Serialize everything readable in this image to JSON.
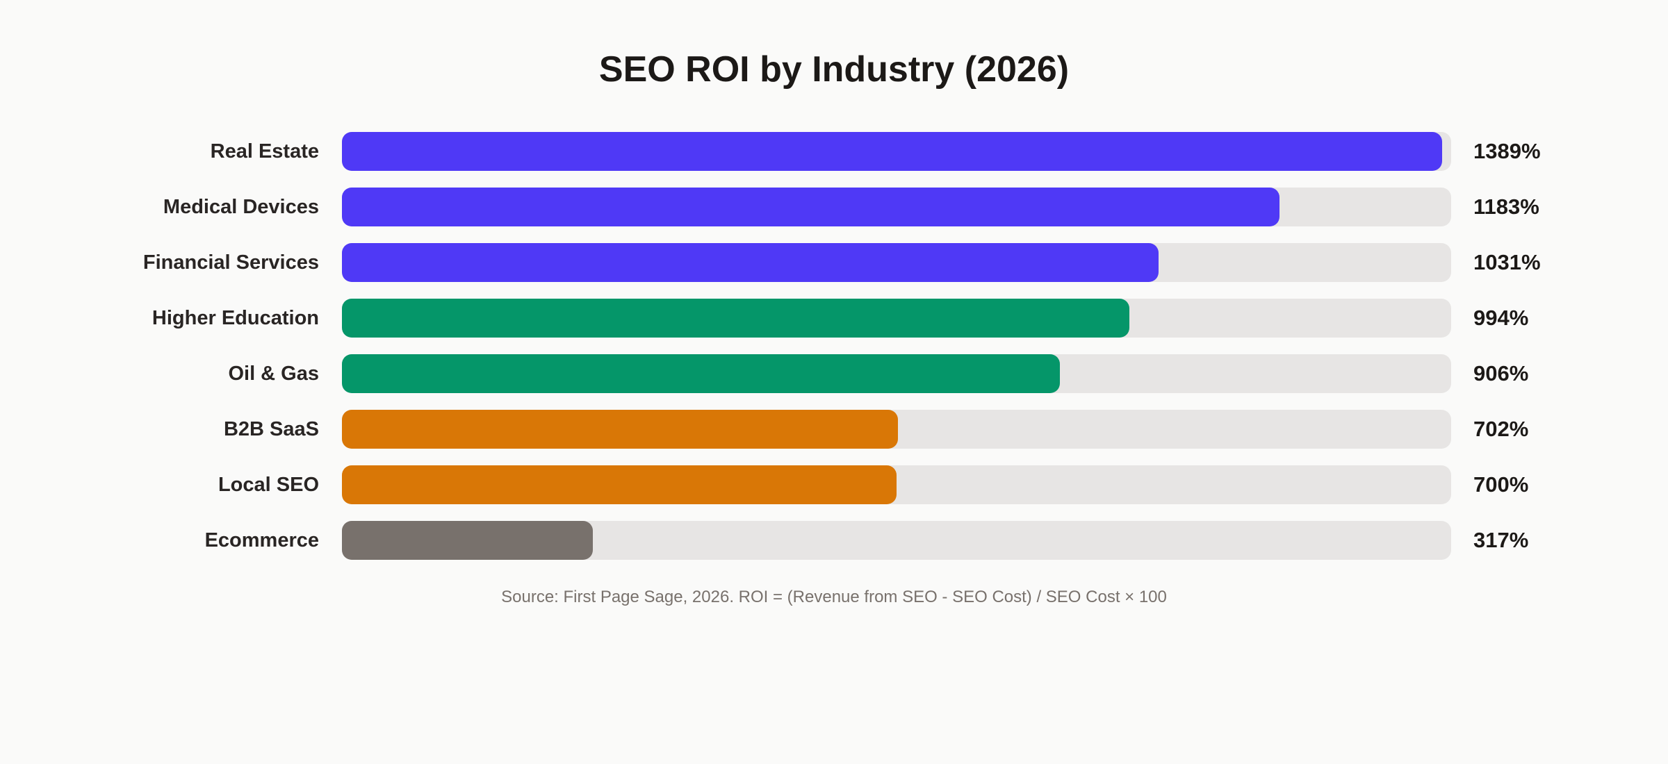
{
  "chart_data": {
    "type": "bar",
    "orientation": "horizontal",
    "title": "SEO ROI by Industry (2026)",
    "categories": [
      "Real Estate",
      "Medical Devices",
      "Financial Services",
      "Higher Education",
      "Oil & Gas",
      "B2B SaaS",
      "Local SEO",
      "Ecommerce"
    ],
    "values": [
      1389,
      1183,
      1031,
      994,
      906,
      702,
      700,
      317
    ],
    "value_labels": [
      "1389%",
      "1183%",
      "1031%",
      "994%",
      "906%",
      "702%",
      "700%",
      "317%"
    ],
    "colors": [
      "#4f39f6",
      "#4f39f6",
      "#4f39f6",
      "#059669",
      "#059669",
      "#d97706",
      "#d97706",
      "#78716c"
    ],
    "track_color": "#e7e5e4",
    "xlim": [
      0,
      1400
    ],
    "xlabel": "",
    "ylabel": "",
    "grid": false,
    "source": "Source: First Page Sage, 2026. ROI = (Revenue from SEO - SEO Cost) / SEO Cost × 100"
  }
}
